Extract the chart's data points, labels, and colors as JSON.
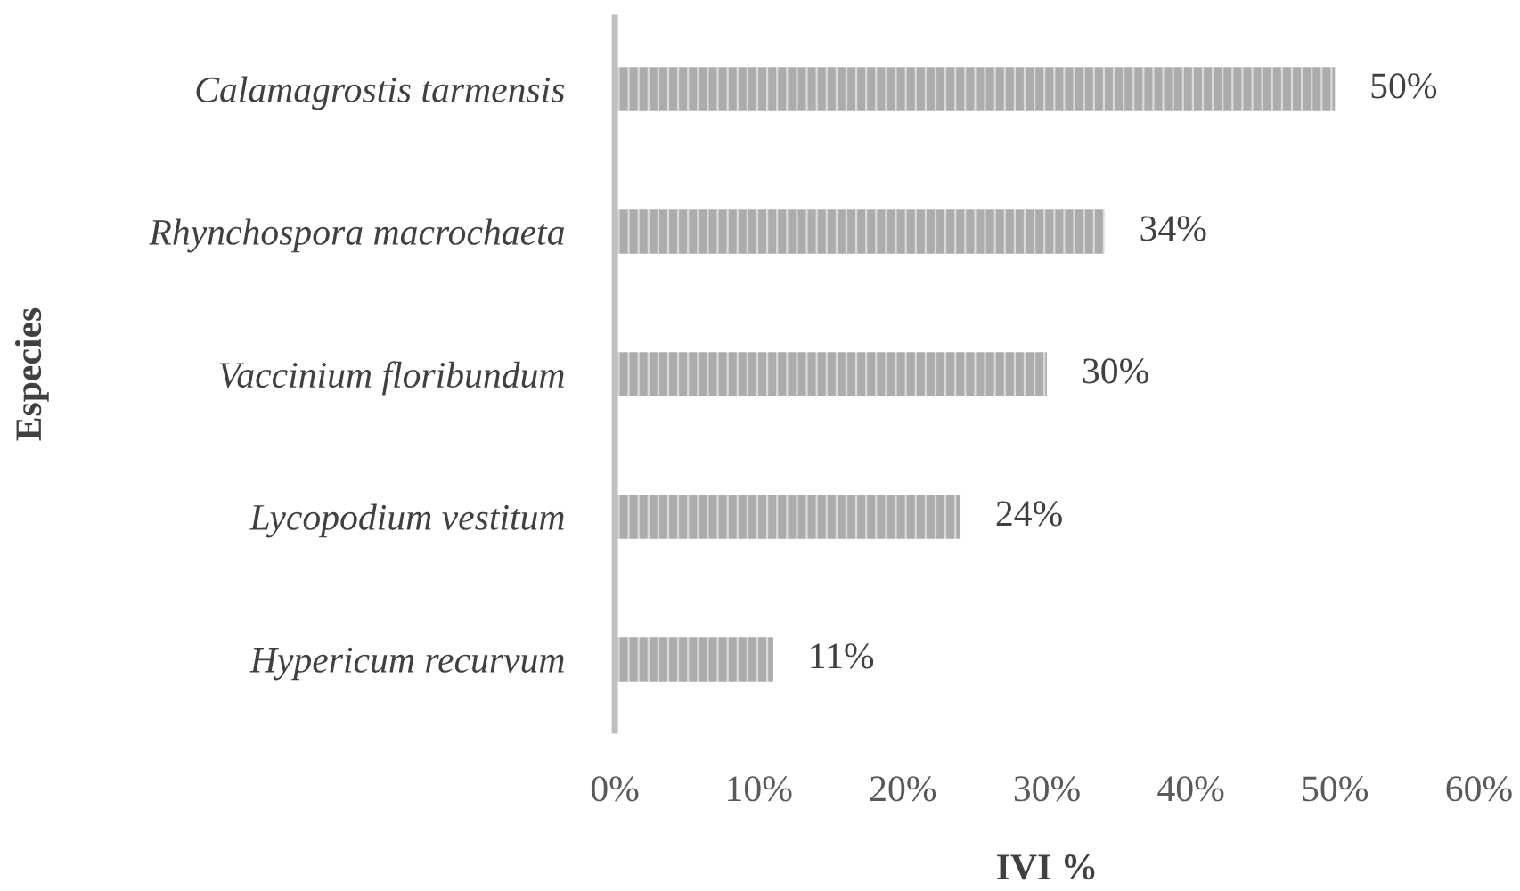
{
  "chart_data": {
    "type": "bar",
    "orientation": "horizontal",
    "categories": [
      "Calamagrostis tarmensis",
      "Rhynchospora macrochaeta",
      "Vaccinium floribundum",
      "Lycopodium vestitum",
      "Hypericum recurvum"
    ],
    "values": [
      50,
      34,
      30,
      24,
      11
    ],
    "color": "#acacac",
    "value_labels": [
      "50%",
      "34%",
      "30%",
      "24%",
      "11%"
    ],
    "xlabel": "IVI %",
    "ylabel": "Especies",
    "xlim": [
      0,
      60
    ],
    "xticks": [
      {
        "value": 0,
        "label": "0%"
      },
      {
        "value": 10,
        "label": "10%"
      },
      {
        "value": 20,
        "label": "20%"
      },
      {
        "value": 30,
        "label": "30%"
      },
      {
        "value": 40,
        "label": "40%"
      },
      {
        "value": 50,
        "label": "50%"
      },
      {
        "value": 60,
        "label": "60%"
      }
    ],
    "grid": false,
    "legend": false
  }
}
